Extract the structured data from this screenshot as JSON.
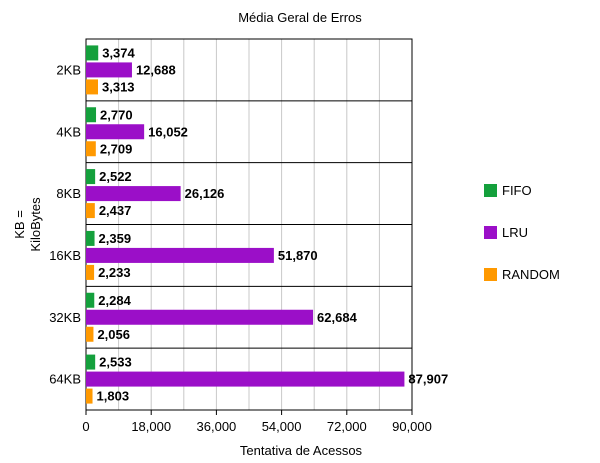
{
  "chart_data": {
    "type": "bar",
    "orientation": "horizontal",
    "title": "Média Geral de Erros",
    "xlabel": "Tentativa de Acessos",
    "ylabel": "KB =\nKiloBytes",
    "categories": [
      "2KB",
      "4KB",
      "8KB",
      "16KB",
      "32KB",
      "64KB"
    ],
    "series": [
      {
        "name": "FIFO",
        "color": "#14a03c",
        "values": [
          3374,
          2770,
          2522,
          2359,
          2284,
          2533
        ]
      },
      {
        "name": "LRU",
        "color": "#9b0fc8",
        "values": [
          12688,
          16052,
          26126,
          51870,
          62684,
          87907
        ]
      },
      {
        "name": "RANDOM",
        "color": "#ff9900",
        "values": [
          3313,
          2709,
          2437,
          2233,
          2056,
          1803
        ]
      }
    ],
    "xlim": [
      0,
      90000
    ],
    "xticks": [
      0,
      18000,
      36000,
      54000,
      72000,
      90000
    ],
    "xtick_labels": [
      "0",
      "18,000",
      "36,000",
      "54,000",
      "72,000",
      "90,000"
    ],
    "grid": true,
    "legend_position": "right"
  }
}
